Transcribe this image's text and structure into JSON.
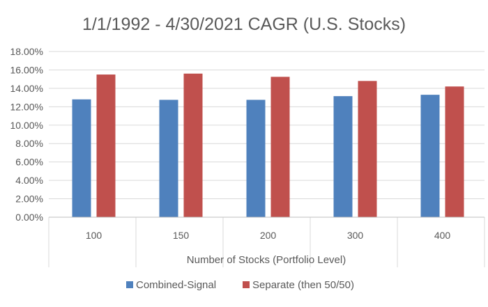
{
  "chart_data": {
    "type": "bar",
    "title": "1/1/1992 - 4/30/2021 CAGR (U.S. Stocks)",
    "xlabel": "Number of Stocks (Portfolio Level)",
    "ylabel": "",
    "categories": [
      "100",
      "150",
      "200",
      "300",
      "400"
    ],
    "series": [
      {
        "name": "Combined-Signal",
        "values": [
          12.8,
          12.75,
          12.75,
          13.15,
          13.3
        ],
        "color": "#4f81bd"
      },
      {
        "name": "Separate (then 50/50)",
        "values": [
          15.5,
          15.6,
          15.25,
          14.8,
          14.2
        ],
        "color": "#c0504d"
      }
    ],
    "ylim": [
      0,
      18
    ],
    "y_ticks": [
      "0.00%",
      "2.00%",
      "4.00%",
      "6.00%",
      "8.00%",
      "10.00%",
      "12.00%",
      "14.00%",
      "16.00%",
      "18.00%"
    ],
    "grid": true,
    "legend_position": "bottom"
  }
}
